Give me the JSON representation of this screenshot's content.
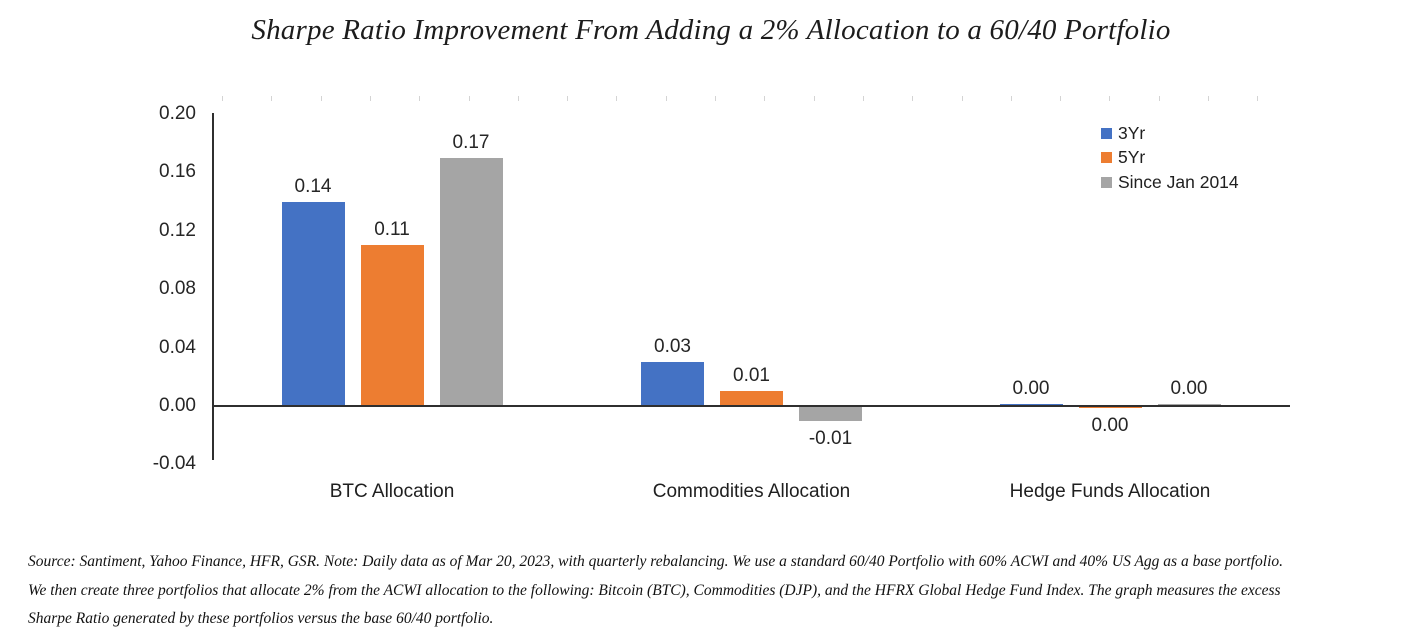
{
  "title": "Sharpe Ratio Improvement From Adding a 2% Allocation to a 60/40 Portfolio",
  "chart_data": {
    "type": "bar",
    "title": "Sharpe Ratio Improvement From Adding a 2% Allocation to a 60/40 Portfolio",
    "categories": [
      "BTC Allocation",
      "Commodities Allocation",
      "Hedge Funds Allocation"
    ],
    "series": [
      {
        "name": "3Yr",
        "color": "#4472C4",
        "values": [
          0.14,
          0.03,
          0.0
        ],
        "labels": [
          "0.14",
          "0.03",
          "0.00"
        ],
        "label_pos": [
          "above",
          "above",
          "above"
        ]
      },
      {
        "name": "5Yr",
        "color": "#ED7D31",
        "values": [
          0.11,
          0.01,
          0.0
        ],
        "labels": [
          "0.11",
          "0.01",
          "0.00"
        ],
        "label_pos": [
          "above",
          "above",
          "below"
        ]
      },
      {
        "name": "Since Jan 2014",
        "color": "#A5A5A5",
        "values": [
          0.17,
          -0.01,
          0.0
        ],
        "labels": [
          "0.17",
          "-0.01",
          "0.00"
        ],
        "label_pos": [
          "above",
          "below",
          "above"
        ]
      }
    ],
    "ylim": [
      -0.04,
      0.2
    ],
    "ytick_step": 0.04,
    "yticks": [
      "0.20",
      "0.16",
      "0.12",
      "0.08",
      "0.04",
      "0.00",
      "-0.04"
    ],
    "legend_position": "top-right",
    "grid": false,
    "axis_color": "#2f2f2f",
    "background": "#ffffff"
  },
  "footnote": {
    "lines": [
      "Source: Santiment, Yahoo Finance, HFR, GSR. Note: Daily data as of Mar 20, 2023, with quarterly rebalancing. We use a standard 60/40 Portfolio with 60% ACWI and 40% US Agg as a base portfolio.",
      "We then create three portfolios that allocate 2% from the ACWI allocation to the following: Bitcoin (BTC), Commodities (DJP), and the HFRX Global Hedge Fund Index. The graph measures the excess",
      "Sharpe Ratio generated by these portfolios versus the base 60/40 portfolio."
    ]
  }
}
